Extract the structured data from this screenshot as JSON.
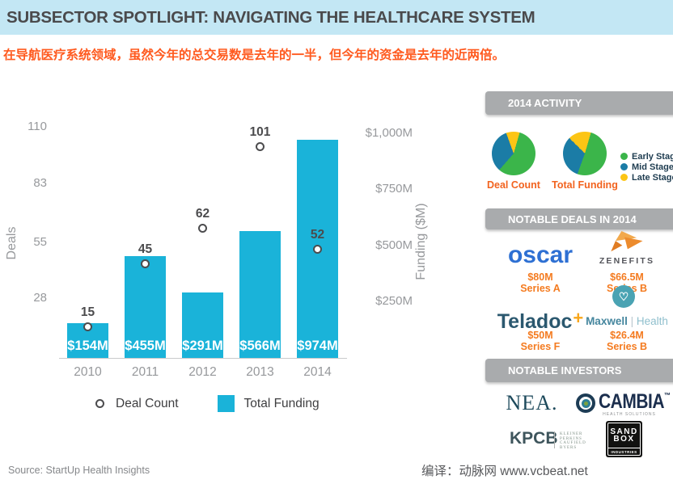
{
  "header": {
    "title": "SUBSECTOR SPOTLIGHT: NAVIGATING THE HEALTHCARE SYSTEM"
  },
  "subtitle": "在导航医疗系统领域，虽然今年的总交易数是去年的一半，但今年的资金是去年的近两倍。",
  "chart_data": {
    "type": "bar",
    "categories": [
      "2010",
      "2011",
      "2012",
      "2013",
      "2014"
    ],
    "series": [
      {
        "name": "Total Funding",
        "type": "bar",
        "axis": "right",
        "values": [
          154,
          455,
          291,
          566,
          974
        ],
        "labels": [
          "$154M",
          "$455M",
          "$291M",
          "$566M",
          "$974M"
        ]
      },
      {
        "name": "Deal Count",
        "type": "scatter",
        "axis": "left",
        "values": [
          15,
          45,
          62,
          101,
          52
        ]
      }
    ],
    "left_axis": {
      "label": "Deals",
      "ticks": [
        110,
        83,
        55,
        28
      ],
      "range": [
        0,
        110
      ]
    },
    "right_axis": {
      "label": "Funding ($M)",
      "range": [
        0,
        1000
      ],
      "ticks": [
        {
          "label": "$1,000M",
          "value": 1000
        },
        {
          "label": "$750M",
          "value": 750
        },
        {
          "label": "$500M",
          "value": 500
        },
        {
          "label": "$250M",
          "value": 250
        }
      ]
    },
    "legend": [
      "Deal Count",
      "Total Funding"
    ],
    "grid": "off",
    "legend_position": "bottom"
  },
  "sidebar": {
    "activity": {
      "title": "2014 ACTIVITY",
      "pies": [
        {
          "label": "Deal Count",
          "start_deg": 340,
          "slices": [
            {
              "stage": "late",
              "name": "Late Stage",
              "pct": 10
            },
            {
              "stage": "early",
              "name": "Early Stage",
              "pct": 57
            },
            {
              "stage": "mid",
              "name": "Mid Stage",
              "pct": 33
            }
          ]
        },
        {
          "label": "Total Funding",
          "start_deg": 315,
          "slices": [
            {
              "stage": "late",
              "name": "Late Stage",
              "pct": 17
            },
            {
              "stage": "early",
              "name": "Early Stage",
              "pct": 51
            },
            {
              "stage": "mid",
              "name": "Mid Stage",
              "pct": 32
            }
          ]
        }
      ],
      "legend": [
        {
          "stage": "early",
          "label": "Early Stage"
        },
        {
          "stage": "mid",
          "label": "Mid Stage"
        },
        {
          "stage": "late",
          "label": "Late Stage"
        }
      ]
    },
    "deals": {
      "title": "NOTABLE DEALS IN 2014",
      "items": [
        {
          "company": "oscar",
          "amount": "$80M",
          "round": "Series A"
        },
        {
          "company": "ZENEFITS",
          "amount": "$66.5M",
          "round": "Series B"
        },
        {
          "company": "Teladoc",
          "suffix": "+",
          "amount": "$50M",
          "round": "Series F"
        },
        {
          "company": "Maxwell Health",
          "name_parts": [
            "Maxwell",
            "|",
            "Health"
          ],
          "amount": "$26.4M",
          "round": "Series B"
        }
      ]
    },
    "investors": {
      "title": "NOTABLE INVESTORS",
      "nea": {
        "name": "NEA."
      },
      "cambia": {
        "name": "CAMBIA",
        "tm": "™",
        "sub": "HEALTH SOLUTIONS"
      },
      "kpcb": {
        "name": "KPCB",
        "lines": [
          "KLEINER",
          "PERKINS",
          "CAUFIELD",
          "BYERS"
        ]
      },
      "sandbox": {
        "lines": [
          "SAND",
          "BOX"
        ],
        "sub": "INDUSTRIES"
      }
    }
  },
  "footer": {
    "source": "Source: StartUp Health Insights",
    "credit": "编译：动脉网 www.vcbeat.net"
  },
  "colors": {
    "bar_cyan": "#1ab3d9",
    "header_bg": "#c3e7f4",
    "subtitle_orange": "#ff5a1f",
    "section_bar_gray": "#a9abad",
    "orange_accent": "#f47b20",
    "stages": {
      "early": "#3bb54a",
      "mid": "#1b7ca6",
      "late": "#fcc515"
    }
  }
}
